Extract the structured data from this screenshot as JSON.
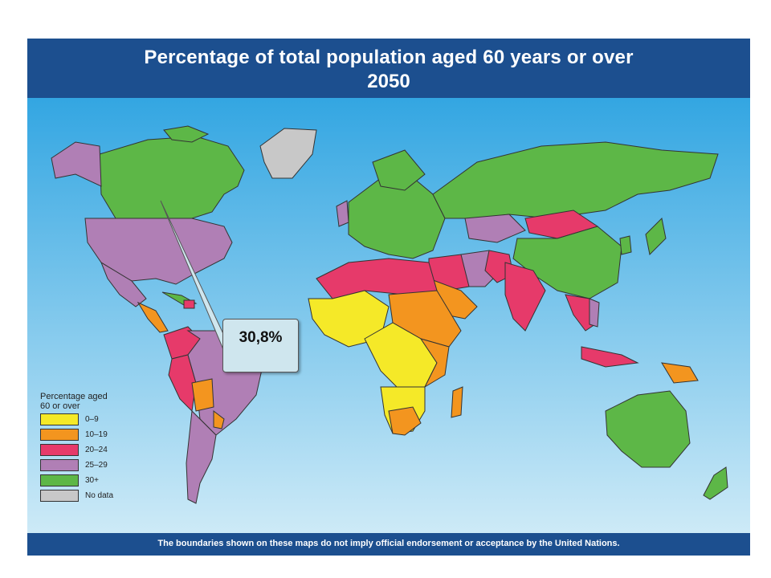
{
  "title": {
    "line1": "Percentage of total population aged 60 years or over",
    "line2": "2050"
  },
  "footer": "The boundaries shown on these maps do not imply official endorsement or acceptance by the United Nations.",
  "legend": {
    "title": "Percentage aged 60 or over",
    "items": [
      {
        "label": "0–9",
        "color": "#f5e928"
      },
      {
        "label": "10–19",
        "color": "#f3951f"
      },
      {
        "label": "20–24",
        "color": "#e63a6a"
      },
      {
        "label": "25–29",
        "color": "#b07fb5"
      },
      {
        "label": "30+",
        "color": "#5db747"
      },
      {
        "label": "No data",
        "color": "#c8c8c8"
      }
    ]
  },
  "callout": "30,8%"
}
